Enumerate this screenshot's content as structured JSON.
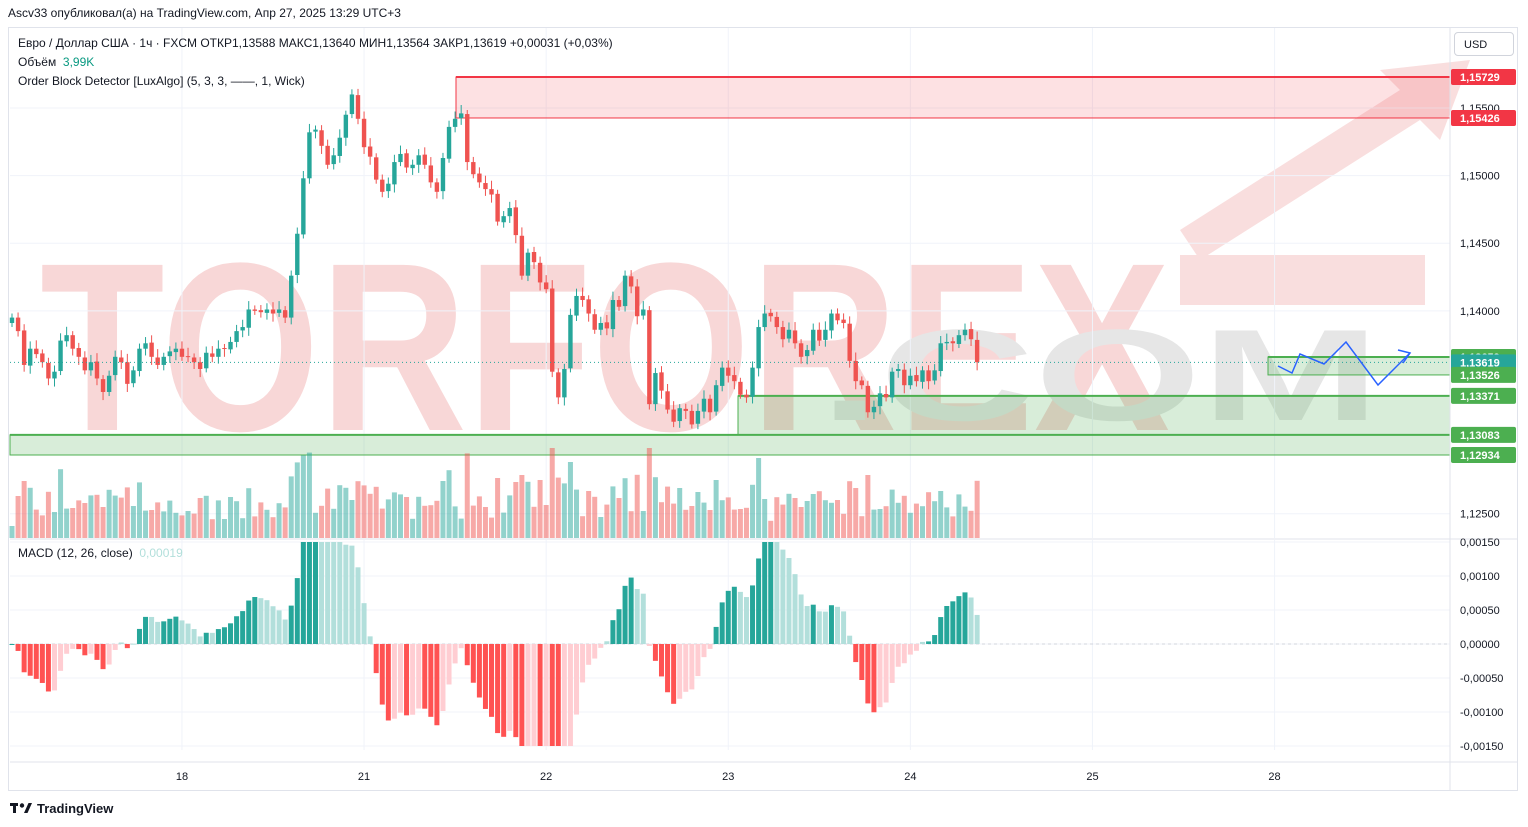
{
  "caption": "Ascv33 опубликовал(а) на TradingView.com, Апр 27, 2025 13:29 UTC+3",
  "legend": {
    "line1": "Евро / Доллар США · 1ч · FXCM  ОТКР1,13588  МАКС1,13640  МИН1,13564  ЗАКР1,13619  +0,00031 (+0,03%)",
    "volume_label": "Объём",
    "volume_value": "3,99K",
    "indicator": "Order Block Detector [LuxAlgo] (5, 3, 3, ——, 1, Wick)"
  },
  "currency_button": "USD",
  "macd": {
    "label": "MACD (12, 26, close)",
    "value": "0,00019"
  },
  "watermark": {
    "main": "TORFOREX",
    "suffix": ".COM"
  },
  "footer": {
    "brand": "TradingView"
  },
  "colors": {
    "up": "#26a69a",
    "down": "#ef5350",
    "zone_red": "#f23645",
    "zone_green": "#4caf50",
    "projection": "#2962ff"
  },
  "chart_data": {
    "type": "candlestick",
    "instrument": "EUR/USD",
    "timeframe": "1h",
    "price_axis": {
      "ticks": [
        {
          "v": 1.155,
          "label": "1,15500"
        },
        {
          "v": 1.15,
          "label": "1,15000"
        },
        {
          "v": 1.145,
          "label": "1,14500"
        },
        {
          "v": 1.14,
          "label": "1,14000"
        },
        {
          "v": 1.125,
          "label": "1,12500"
        }
      ],
      "markers": [
        {
          "v": 1.15729,
          "label": "1,15729",
          "color": "#f23645"
        },
        {
          "v": 1.15426,
          "label": "1,15426",
          "color": "#f23645"
        },
        {
          "v": 1.13659,
          "label": "1,13659",
          "color": "#4caf50"
        },
        {
          "v": 1.13619,
          "label": "1,13619",
          "color": "#26a69a"
        },
        {
          "v": 1.13526,
          "label": "1,13526",
          "color": "#4caf50"
        },
        {
          "v": 1.13371,
          "label": "1,13371",
          "color": "#4caf50"
        },
        {
          "v": 1.13083,
          "label": "1,13083",
          "color": "#4caf50"
        },
        {
          "v": 1.12934,
          "label": "1,12934",
          "color": "#4caf50"
        }
      ]
    },
    "time_axis": [
      "18",
      "21",
      "22",
      "23",
      "24",
      "25",
      "28"
    ],
    "order_blocks": [
      {
        "kind": "bearish",
        "top": 1.15729,
        "bottom": 1.15426,
        "start": "21"
      },
      {
        "kind": "bullish",
        "top": 1.13659,
        "bottom": 1.13526,
        "start": "25"
      },
      {
        "kind": "bullish",
        "top": 1.13371,
        "bottom": 1.13083,
        "start": "23"
      },
      {
        "kind": "bullish",
        "top": 1.13083,
        "bottom": 1.12934,
        "start": "17"
      }
    ],
    "closes": [
      1.1395,
      1.1385,
      1.136,
      1.1372,
      1.1368,
      1.1362,
      1.135,
      1.1355,
      1.1378,
      1.1382,
      1.1372,
      1.1366,
      1.1356,
      1.1362,
      1.135,
      1.134,
      1.1352,
      1.1366,
      1.1362,
      1.1346,
      1.1356,
      1.1372,
      1.1376,
      1.1366,
      1.136,
      1.1366,
      1.137,
      1.1372,
      1.1366,
      1.1366,
      1.1362,
      1.1357,
      1.1369,
      1.1366,
      1.1372,
      1.1372,
      1.1377,
      1.1385,
      1.1388,
      1.1401,
      1.14,
      1.1399,
      1.1401,
      1.1398,
      1.1401,
      1.1395,
      1.1426,
      1.1457,
      1.1498,
      1.1532,
      1.1534,
      1.1522,
      1.1508,
      1.1515,
      1.1528,
      1.1545,
      1.156,
      1.1542,
      1.1521,
      1.1514,
      1.1497,
      1.1488,
      1.1494,
      1.151,
      1.1516,
      1.1506,
      1.1508,
      1.1515,
      1.1508,
      1.1495,
      1.1488,
      1.1513,
      1.1536,
      1.1542,
      1.1546,
      1.151,
      1.1501,
      1.1495,
      1.149,
      1.1486,
      1.1466,
      1.147,
      1.1476,
      1.1456,
      1.1426,
      1.1443,
      1.1436,
      1.1421,
      1.1416,
      1.1355,
      1.1336,
      1.1357,
      1.1397,
      1.1411,
      1.1408,
      1.1398,
      1.1386,
      1.1391,
      1.1387,
      1.1408,
      1.1403,
      1.1426,
      1.1418,
      1.1396,
      1.1401,
      1.1331,
      1.1354,
      1.1341,
      1.1327,
      1.1318,
      1.1328,
      1.1326,
      1.1316,
      1.1326,
      1.1335,
      1.1325,
      1.1345,
      1.1358,
      1.1352,
      1.1348,
      1.1338,
      1.1336,
      1.1358,
      1.1388,
      1.1398,
      1.1396,
      1.1388,
      1.1379,
      1.1386,
      1.1376,
      1.1366,
      1.1371,
      1.1386,
      1.1378,
      1.1386,
      1.1398,
      1.1393,
      1.1391,
      1.1363,
      1.1348,
      1.1345,
      1.1325,
      1.1329,
      1.1339,
      1.1336,
      1.1355,
      1.1357,
      1.1345,
      1.1352,
      1.1348,
      1.1356,
      1.1348,
      1.1356,
      1.1376,
      1.1377,
      1.1376,
      1.1382,
      1.1386,
      1.1379,
      1.1362
    ],
    "macd_axis": [
      {
        "v": 0.0015,
        "label": "0,00150"
      },
      {
        "v": 0.001,
        "label": "0,00100"
      },
      {
        "v": 0.0005,
        "label": "0,00050"
      },
      {
        "v": 0.0,
        "label": "0,00000"
      },
      {
        "v": -0.0005,
        "label": "-0,00050"
      },
      {
        "v": -0.001,
        "label": "-0,00100"
      },
      {
        "v": -0.0015,
        "label": "-0,00150"
      }
    ]
  }
}
